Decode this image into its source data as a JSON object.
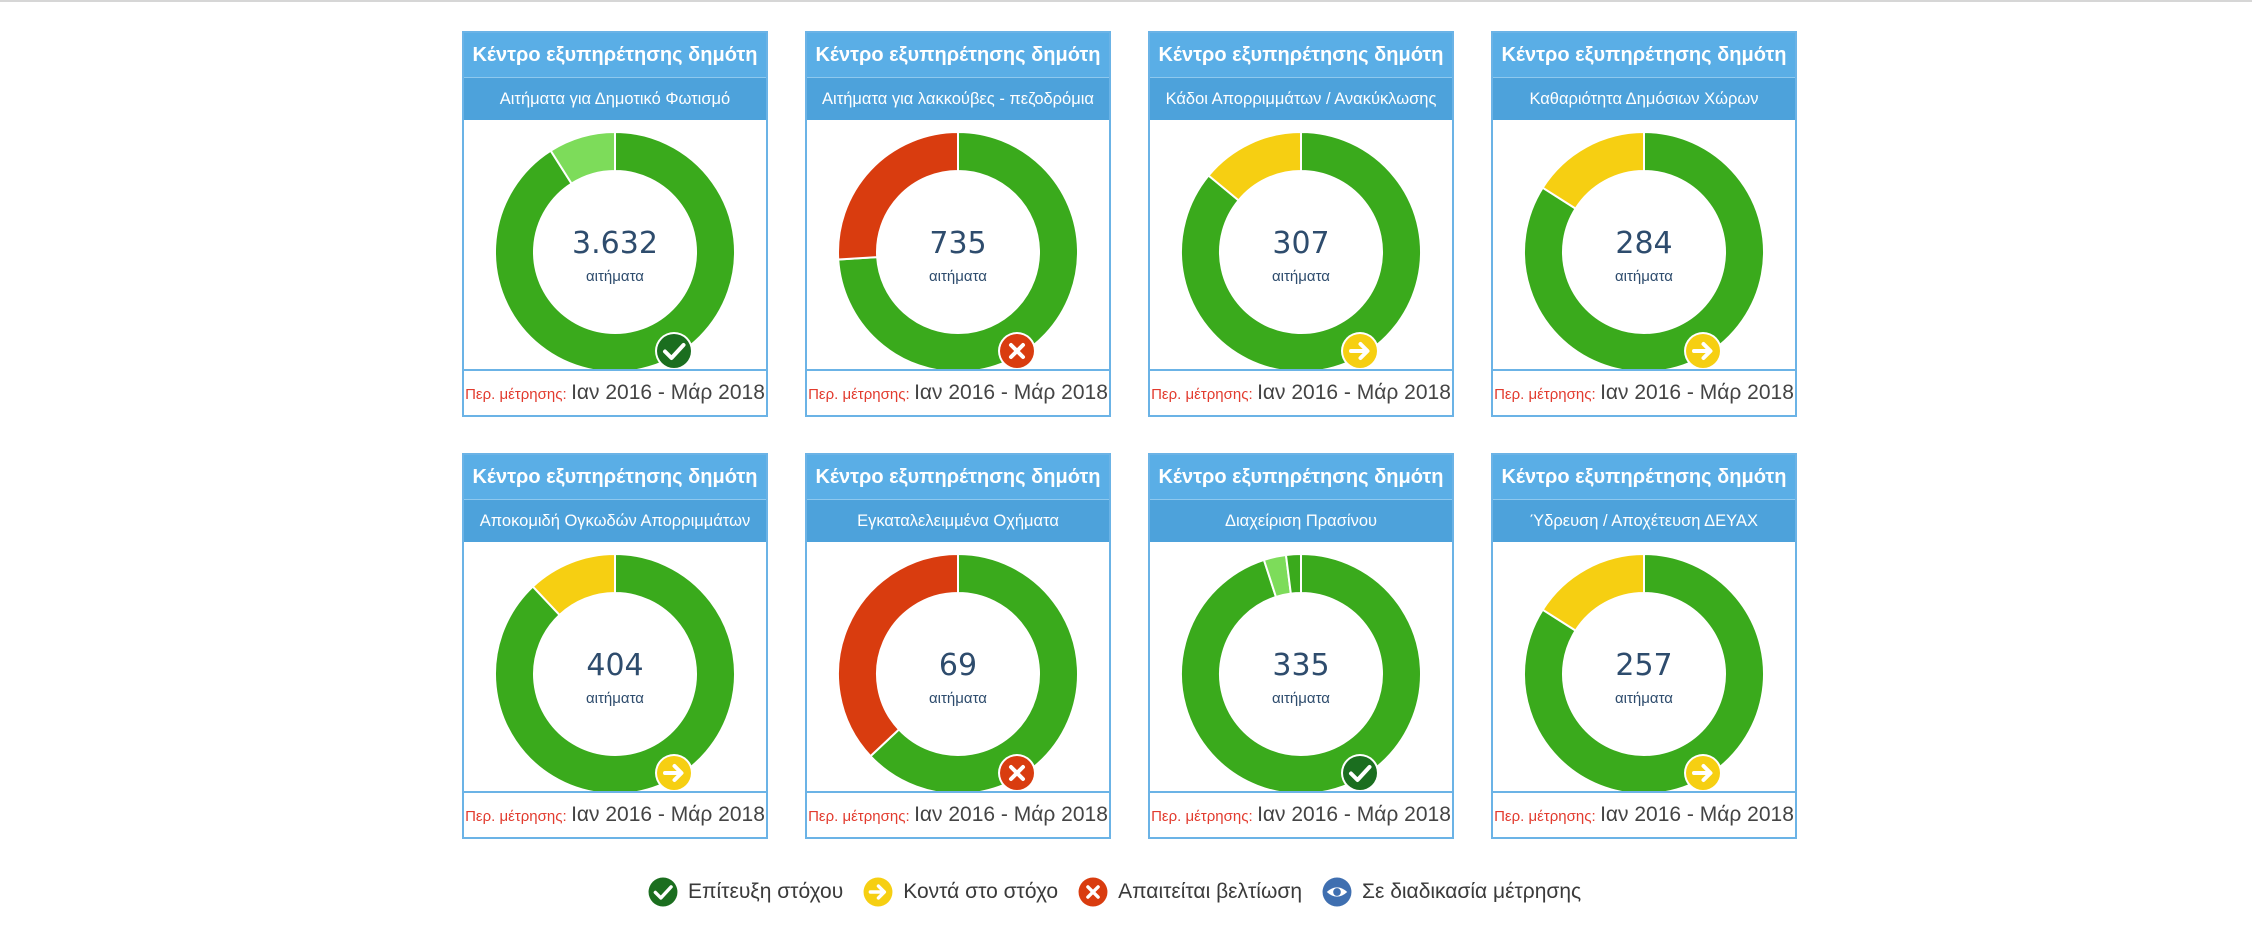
{
  "chart_data": [
    {
      "type": "donut",
      "title": "Κέντρο εξυπηρέτησης δημότη",
      "subtitle": "Αιτήματα για Δημοτικό Φωτισμό",
      "value": "3.632",
      "unit": "αιτήματα",
      "period_label": "Περ. μέτρησης:",
      "period": "Ιαν 2016 - Μάρ 2018",
      "status": "achieved",
      "segments": [
        {
          "label": "green",
          "share": 0.91
        },
        {
          "label": "light-green",
          "share": 0.09
        }
      ]
    },
    {
      "type": "donut",
      "title": "Κέντρο εξυπηρέτησης δημότη",
      "subtitle": "Αιτήματα για λακκούβες - πεζοδρόμια",
      "value": "735",
      "unit": "αιτήματα",
      "period_label": "Περ. μέτρησης:",
      "period": "Ιαν 2016 - Μάρ 2018",
      "status": "improve",
      "segments": [
        {
          "label": "green",
          "share": 0.74
        },
        {
          "label": "red",
          "share": 0.26
        }
      ]
    },
    {
      "type": "donut",
      "title": "Κέντρο εξυπηρέτησης δημότη",
      "subtitle": "Κάδοι Απορριμμάτων / Ανακύκλωσης",
      "value": "307",
      "unit": "αιτήματα",
      "period_label": "Περ. μέτρησης:",
      "period": "Ιαν 2016 - Μάρ 2018",
      "status": "close",
      "segments": [
        {
          "label": "green",
          "share": 0.86
        },
        {
          "label": "yellow",
          "share": 0.14
        }
      ]
    },
    {
      "type": "donut",
      "title": "Κέντρο εξυπηρέτησης δημότη",
      "subtitle": "Καθαριότητα Δημόσιων Χώρων",
      "value": "284",
      "unit": "αιτήματα",
      "period_label": "Περ. μέτρησης:",
      "period": "Ιαν 2016 - Μάρ 2018",
      "status": "close",
      "segments": [
        {
          "label": "green",
          "share": 0.84
        },
        {
          "label": "yellow",
          "share": 0.16
        }
      ]
    },
    {
      "type": "donut",
      "title": "Κέντρο εξυπηρέτησης δημότη",
      "subtitle": "Αποκομιδή Ογκωδών Απορριμμάτων",
      "value": "404",
      "unit": "αιτήματα",
      "period_label": "Περ. μέτρησης:",
      "period": "Ιαν 2016 - Μάρ 2018",
      "status": "close",
      "segments": [
        {
          "label": "green",
          "share": 0.88
        },
        {
          "label": "yellow",
          "share": 0.12
        }
      ]
    },
    {
      "type": "donut",
      "title": "Κέντρο εξυπηρέτησης δημότη",
      "subtitle": "Εγκαταλελειμμένα Οχήματα",
      "value": "69",
      "unit": "αιτήματα",
      "period_label": "Περ. μέτρησης:",
      "period": "Ιαν 2016 - Μάρ 2018",
      "status": "improve",
      "segments": [
        {
          "label": "green",
          "share": 0.63
        },
        {
          "label": "red",
          "share": 0.37
        }
      ]
    },
    {
      "type": "donut",
      "title": "Κέντρο εξυπηρέτησης δημότη",
      "subtitle": "Διαχείριση Πρασίνου",
      "value": "335",
      "unit": "αιτήματα",
      "period_label": "Περ. μέτρησης:",
      "period": "Ιαν 2016 - Μάρ 2018",
      "status": "achieved",
      "segments": [
        {
          "label": "green",
          "share": 0.95
        },
        {
          "label": "light-green",
          "share": 0.03
        },
        {
          "label": "green",
          "share": 0.02
        }
      ]
    },
    {
      "type": "donut",
      "title": "Κέντρο εξυπηρέτησης δημότη",
      "subtitle": "Ύδρευση / Αποχέτευση ΔΕΥΑΧ",
      "value": "257",
      "unit": "αιτήματα",
      "period_label": "Περ. μέτρησης:",
      "period": "Ιαν 2016 - Μάρ 2018",
      "status": "close",
      "segments": [
        {
          "label": "green",
          "share": 0.84
        },
        {
          "label": "yellow",
          "share": 0.16
        }
      ]
    }
  ],
  "colors": {
    "green": "#3aaa1c",
    "light-green": "#7ddc5a",
    "yellow": "#f6cf12",
    "red": "#d93c0f",
    "achieved": "#1b6e1f",
    "close": "#f6cf12",
    "improve": "#d93c0f",
    "measuring": "#3f6fb0"
  },
  "legend": [
    {
      "status": "achieved",
      "icon": "check-icon",
      "label": "Επίτευξη στόχου"
    },
    {
      "status": "close",
      "icon": "arrow-right-icon",
      "label": "Κοντά στο στόχο"
    },
    {
      "status": "improve",
      "icon": "x-icon",
      "label": "Απαιτείται βελτίωση"
    },
    {
      "status": "measuring",
      "icon": "eye-icon",
      "label": "Σε διαδικασία μέτρησης"
    }
  ]
}
